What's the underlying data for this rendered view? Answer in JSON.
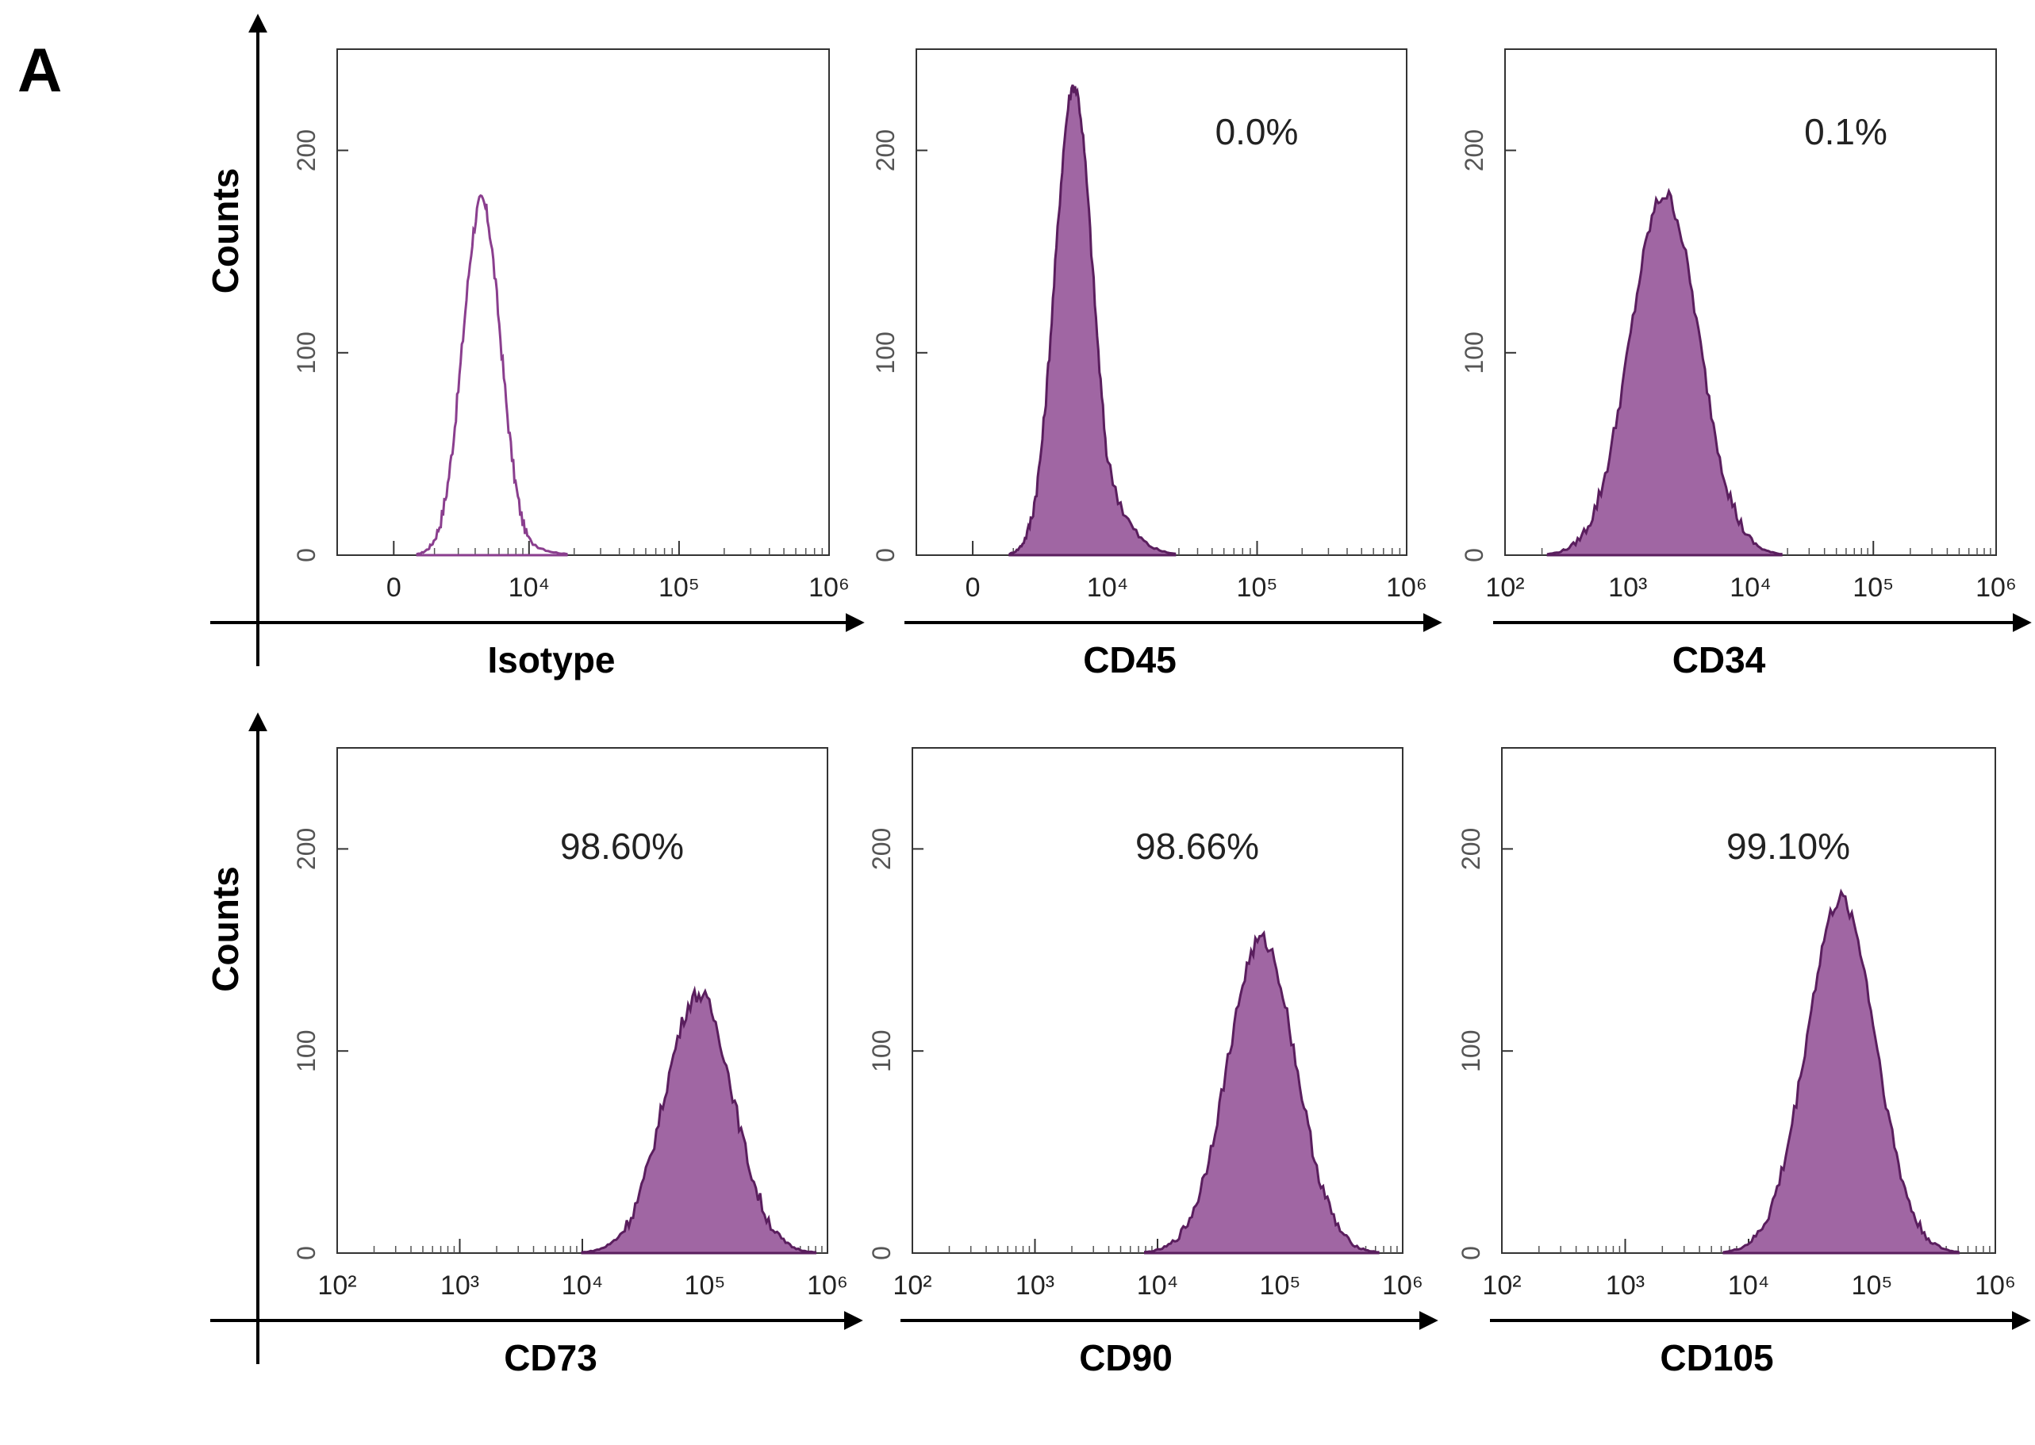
{
  "figure": {
    "panel_letter": "A",
    "colors": {
      "histogram_fill": "#a066a3",
      "histogram_edge": "#5a1e5e",
      "isotype_line": "#8a3e8e",
      "axis": "#000000",
      "frame": "#333333"
    }
  },
  "chart_data": [
    {
      "type": "histogram",
      "id": "isotype",
      "xlabel": "Isotype",
      "ylabel": "Counts",
      "percent_label": "",
      "x_scale": "biexponential",
      "x_ticks": [
        "0",
        "10⁴",
        "10⁵",
        "10⁶"
      ],
      "y_ticks": [
        "0",
        "100",
        "200"
      ],
      "ylim": [
        0,
        250
      ],
      "filled": false,
      "peak_log10": 3.3,
      "peak_count": 175
    },
    {
      "type": "histogram",
      "id": "cd45",
      "xlabel": "CD45",
      "ylabel": "",
      "percent_label": "0.0%",
      "x_scale": "biexponential",
      "x_ticks": [
        "0",
        "10⁴",
        "10⁵",
        "10⁶"
      ],
      "y_ticks": [
        "0",
        "100",
        "200"
      ],
      "ylim": [
        0,
        250
      ],
      "filled": true,
      "peak_log10": 3.5,
      "peak_count": 232
    },
    {
      "type": "histogram",
      "id": "cd34",
      "xlabel": "CD34",
      "ylabel": "",
      "percent_label": "0.1%",
      "x_scale": "log",
      "x_ticks": [
        "10²",
        "10³",
        "10⁴",
        "10⁵",
        "10⁶"
      ],
      "y_ticks": [
        "0",
        "100",
        "200"
      ],
      "ylim": [
        0,
        250
      ],
      "filled": true,
      "peak_log10": 3.3,
      "peak_count": 178
    },
    {
      "type": "histogram",
      "id": "cd73",
      "xlabel": "CD73",
      "ylabel": "Counts",
      "percent_label": "98.60%",
      "x_scale": "log",
      "x_ticks": [
        "10²",
        "10³",
        "10⁴",
        "10⁵",
        "10⁶"
      ],
      "y_ticks": [
        "0",
        "100",
        "200"
      ],
      "ylim": [
        0,
        250
      ],
      "filled": true,
      "peak_log10": 4.95,
      "peak_count": 128
    },
    {
      "type": "histogram",
      "id": "cd90",
      "xlabel": "CD90",
      "ylabel": "",
      "percent_label": "98.66%",
      "x_scale": "log",
      "x_ticks": [
        "10²",
        "10³",
        "10⁴",
        "10⁵",
        "10⁶"
      ],
      "y_ticks": [
        "0",
        "100",
        "200"
      ],
      "ylim": [
        0,
        250
      ],
      "filled": true,
      "peak_log10": 4.85,
      "peak_count": 155
    },
    {
      "type": "histogram",
      "id": "cd105",
      "xlabel": "CD105",
      "ylabel": "",
      "percent_label": "99.10%",
      "x_scale": "log",
      "x_ticks": [
        "10²",
        "10³",
        "10⁴",
        "10⁵",
        "10⁶"
      ],
      "y_ticks": [
        "0",
        "100",
        "200"
      ],
      "ylim": [
        0,
        250
      ],
      "filled": true,
      "peak_log10": 4.75,
      "peak_count": 175
    }
  ]
}
